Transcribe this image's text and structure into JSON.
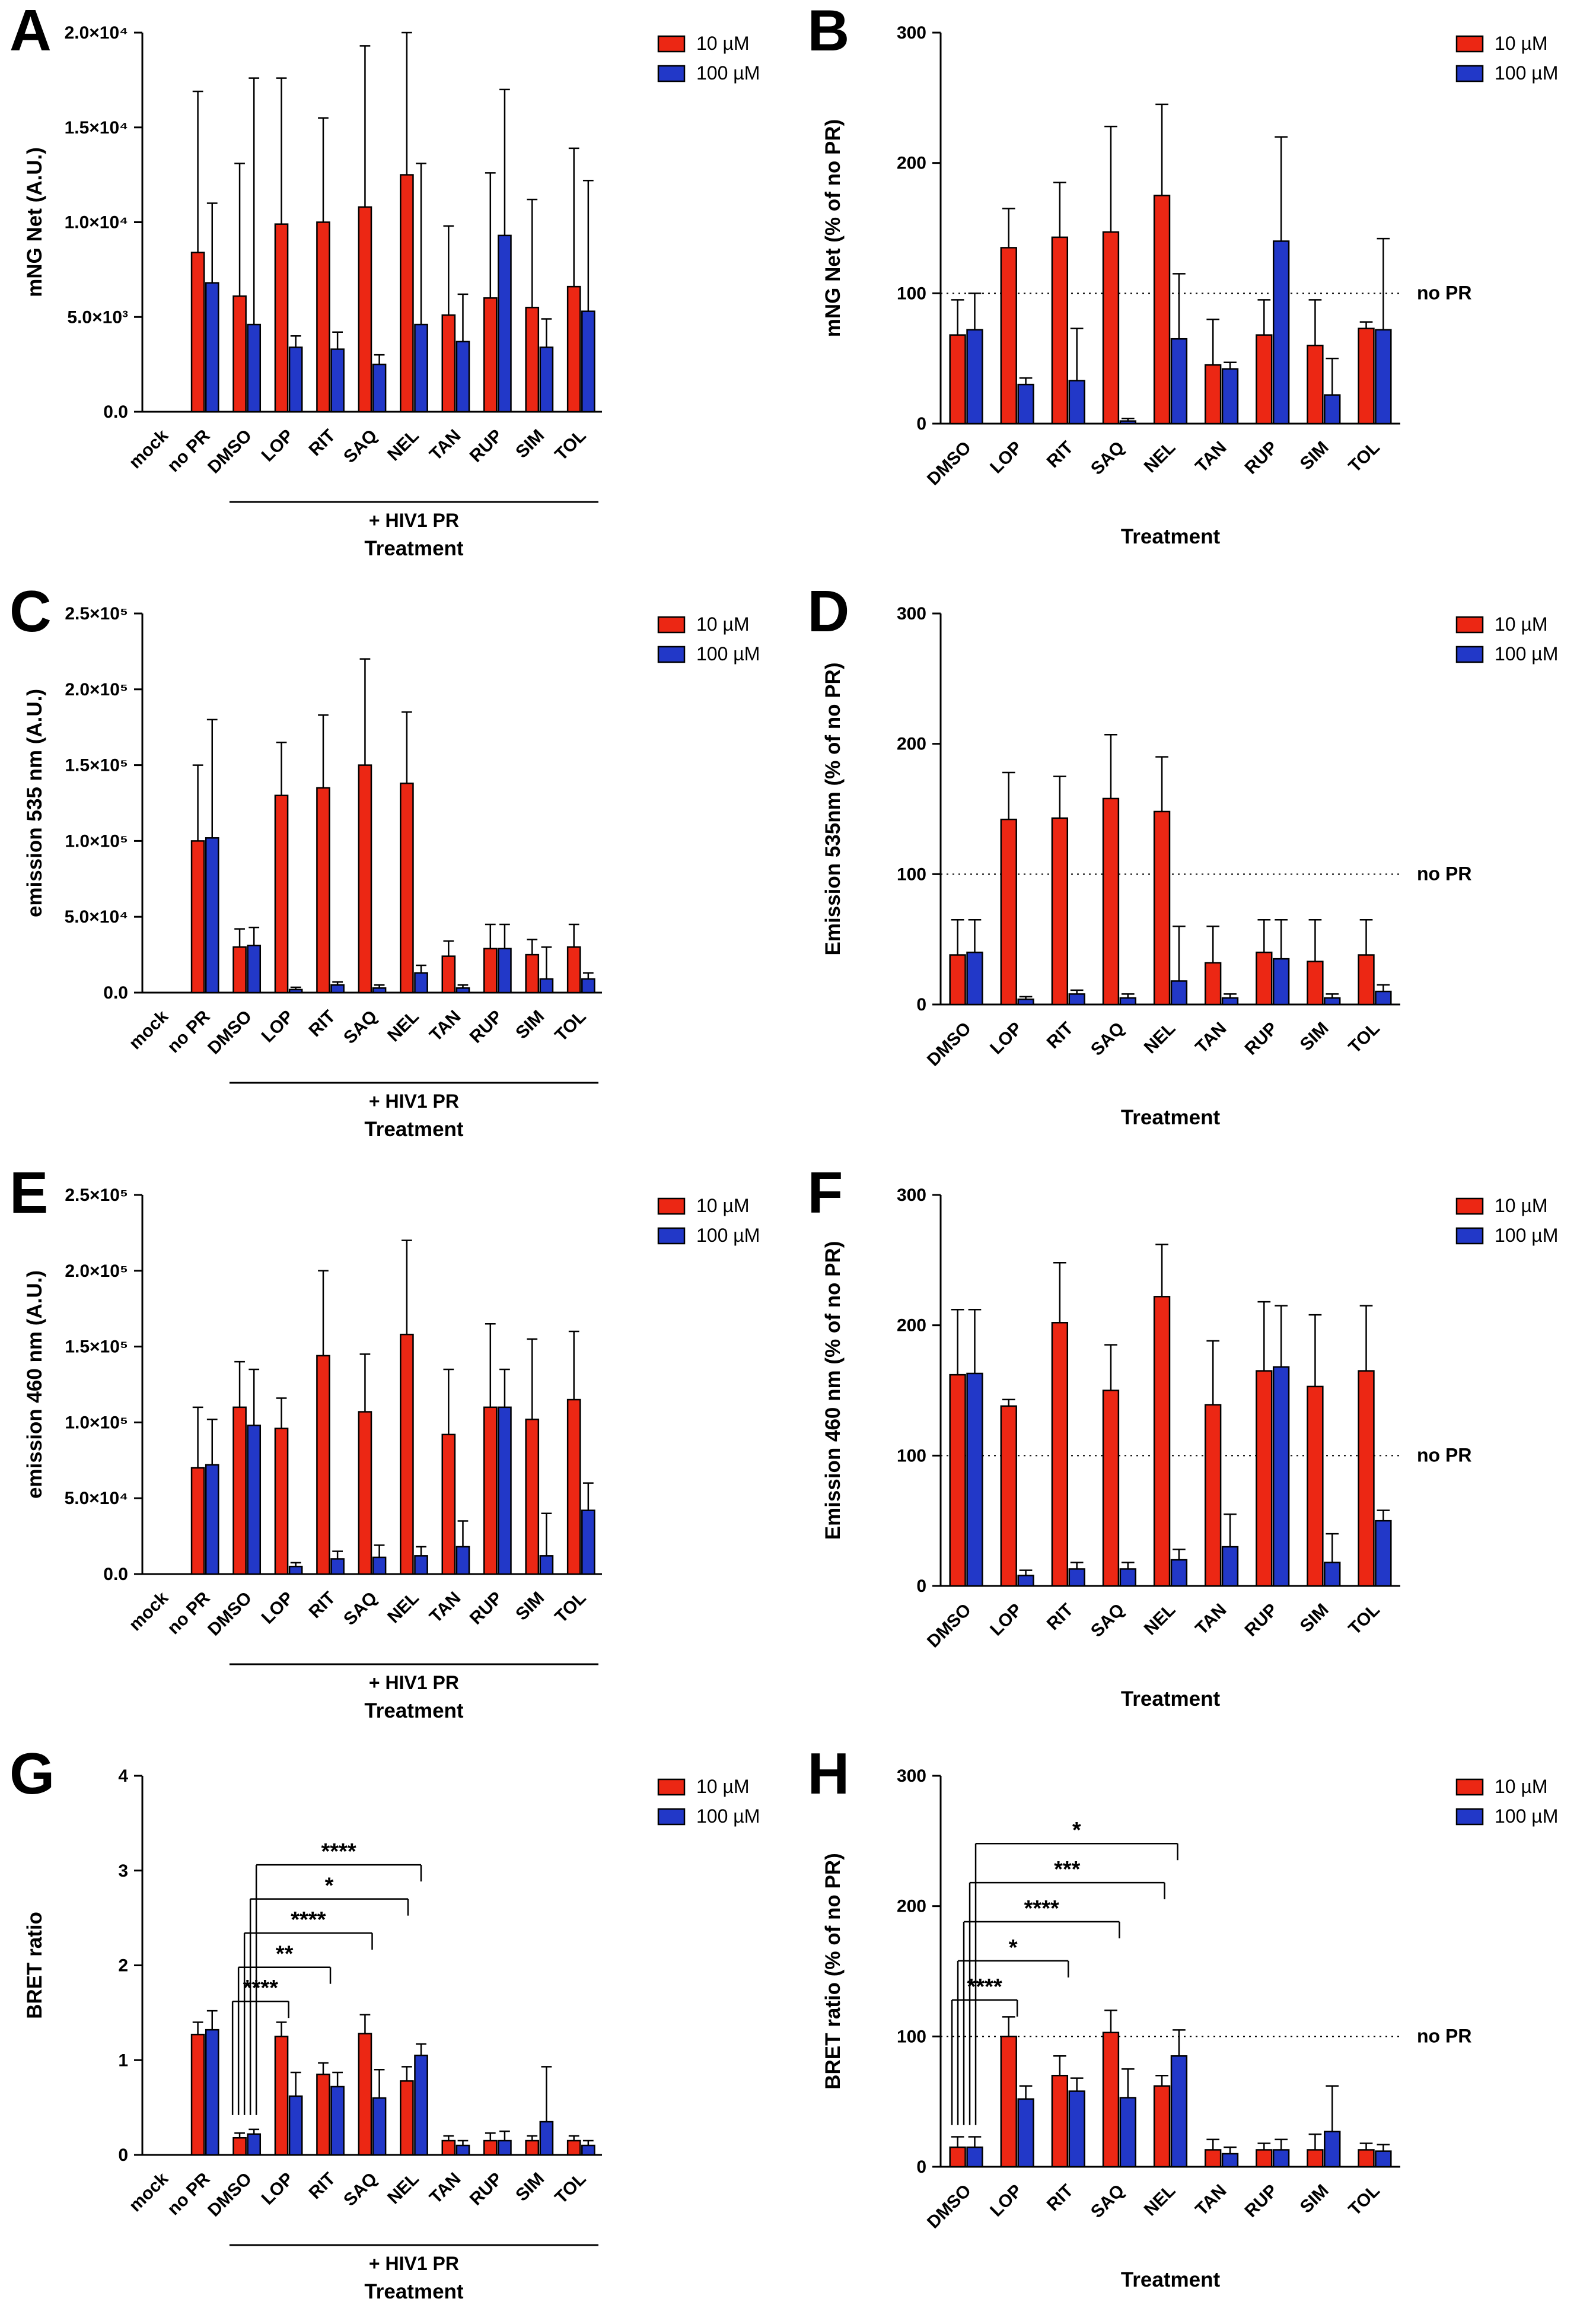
{
  "figure": {
    "panel_labels": [
      "A",
      "B",
      "C",
      "D",
      "E",
      "F",
      "G",
      "H"
    ]
  },
  "chart_data": [
    {
      "type": "bar",
      "panel_label": "A",
      "ylabel": "mNG Net (A.U.)",
      "xlabel": "Treatment",
      "ymax": 20000,
      "yticks": [
        {
          "v": 0,
          "t": "0.0"
        },
        {
          "v": 5000,
          "t": "5.0×10³"
        },
        {
          "v": 10000,
          "t": "1.0×10⁴"
        },
        {
          "v": 15000,
          "t": "1.5×10⁴"
        },
        {
          "v": 20000,
          "t": "2.0×10⁴"
        }
      ],
      "categories": [
        "mock",
        "no PR",
        "DMSO",
        "LOP",
        "RIT",
        "SAQ",
        "NEL",
        "TAN",
        "RUP",
        "SIM",
        "TOL"
      ],
      "series": [
        {
          "name": "10 µM",
          "color": "#EC2714",
          "values": [
            0,
            8400,
            6100,
            9900,
            10000,
            10800,
            12500,
            5100,
            6000,
            5500,
            6600
          ],
          "errors": [
            0,
            8500,
            7000,
            7700,
            5500,
            8500,
            7500,
            4700,
            6600,
            5700,
            7300
          ]
        },
        {
          "name": "100 µM",
          "color": "#2238C8",
          "values": [
            0,
            6800,
            4600,
            3400,
            3300,
            2500,
            4600,
            3700,
            9300,
            3400,
            5300
          ],
          "errors": [
            0,
            4200,
            13000,
            600,
            900,
            500,
            8500,
            2500,
            7700,
            1500,
            6900
          ]
        }
      ],
      "group_bracket": {
        "from": 2,
        "to": 10,
        "label": "+ HIV1 PR"
      }
    },
    {
      "type": "bar",
      "panel_label": "B",
      "ylabel": "mNG Net (% of no PR)",
      "xlabel": "Treatment",
      "ymax": 300,
      "yticks": [
        {
          "v": 0,
          "t": "0"
        },
        {
          "v": 100,
          "t": "100"
        },
        {
          "v": 200,
          "t": "200"
        },
        {
          "v": 300,
          "t": "300"
        }
      ],
      "categories": [
        "DMSO",
        "LOP",
        "RIT",
        "SAQ",
        "NEL",
        "TAN",
        "RUP",
        "SIM",
        "TOL"
      ],
      "series": [
        {
          "name": "10 µM",
          "color": "#EC2714",
          "values": [
            68,
            135,
            143,
            147,
            175,
            45,
            68,
            60,
            73
          ],
          "errors": [
            27,
            30,
            42,
            81,
            70,
            35,
            27,
            35,
            5
          ]
        },
        {
          "name": "100 µM",
          "color": "#2238C8",
          "values": [
            72,
            30,
            33,
            2,
            65,
            42,
            140,
            22,
            72
          ],
          "errors": [
            28,
            5,
            40,
            2,
            50,
            5,
            80,
            28,
            70
          ]
        }
      ],
      "ref_line": {
        "value": 100,
        "label": "no PR"
      }
    },
    {
      "type": "bar",
      "panel_label": "C",
      "ylabel": "emission 535 nm (A.U.)",
      "xlabel": "Treatment",
      "ymax": 250000,
      "yticks": [
        {
          "v": 0,
          "t": "0.0"
        },
        {
          "v": 50000,
          "t": "5.0×10⁴"
        },
        {
          "v": 100000,
          "t": "1.0×10⁵"
        },
        {
          "v": 150000,
          "t": "1.5×10⁵"
        },
        {
          "v": 200000,
          "t": "2.0×10⁵"
        },
        {
          "v": 250000,
          "t": "2.5×10⁵"
        }
      ],
      "categories": [
        "mock",
        "no PR",
        "DMSO",
        "LOP",
        "RIT",
        "SAQ",
        "NEL",
        "TAN",
        "RUP",
        "SIM",
        "TOL"
      ],
      "series": [
        {
          "name": "10 µM",
          "color": "#EC2714",
          "values": [
            0,
            100000,
            30000,
            130000,
            135000,
            150000,
            138000,
            24000,
            29000,
            25000,
            30000
          ],
          "errors": [
            0,
            50000,
            12000,
            35000,
            48000,
            70000,
            47000,
            10000,
            16000,
            10000,
            15000
          ]
        },
        {
          "name": "100 µM",
          "color": "#2238C8",
          "values": [
            0,
            102000,
            31000,
            2000,
            5000,
            3000,
            13000,
            3000,
            29000,
            9000,
            9000
          ],
          "errors": [
            0,
            78000,
            12000,
            1500,
            2000,
            2000,
            5000,
            2000,
            16000,
            21000,
            4000
          ]
        }
      ],
      "group_bracket": {
        "from": 2,
        "to": 10,
        "label": "+ HIV1 PR"
      }
    },
    {
      "type": "bar",
      "panel_label": "D",
      "ylabel": "Emission 535nm (% of no PR)",
      "xlabel": "Treatment",
      "ymax": 300,
      "yticks": [
        {
          "v": 0,
          "t": "0"
        },
        {
          "v": 100,
          "t": "100"
        },
        {
          "v": 200,
          "t": "200"
        },
        {
          "v": 300,
          "t": "300"
        }
      ],
      "categories": [
        "DMSO",
        "LOP",
        "RIT",
        "SAQ",
        "NEL",
        "TAN",
        "RUP",
        "SIM",
        "TOL"
      ],
      "series": [
        {
          "name": "10 µM",
          "color": "#EC2714",
          "values": [
            38,
            142,
            143,
            158,
            148,
            32,
            40,
            33,
            38
          ],
          "errors": [
            27,
            36,
            32,
            49,
            42,
            28,
            25,
            32,
            27
          ]
        },
        {
          "name": "100 µM",
          "color": "#2238C8",
          "values": [
            40,
            4,
            8,
            5,
            18,
            5,
            35,
            5,
            10
          ],
          "errors": [
            25,
            2,
            3,
            3,
            42,
            3,
            30,
            3,
            5
          ]
        }
      ],
      "ref_line": {
        "value": 100,
        "label": "no PR"
      }
    },
    {
      "type": "bar",
      "panel_label": "E",
      "ylabel": "emission 460 nm (A.U.)",
      "xlabel": "Treatment",
      "ymax": 250000,
      "yticks": [
        {
          "v": 0,
          "t": "0.0"
        },
        {
          "v": 50000,
          "t": "5.0×10⁴"
        },
        {
          "v": 100000,
          "t": "1.0×10⁵"
        },
        {
          "v": 150000,
          "t": "1.5×10⁵"
        },
        {
          "v": 200000,
          "t": "2.0×10⁵"
        },
        {
          "v": 250000,
          "t": "2.5×10⁵"
        }
      ],
      "categories": [
        "mock",
        "no PR",
        "DMSO",
        "LOP",
        "RIT",
        "SAQ",
        "NEL",
        "TAN",
        "RUP",
        "SIM",
        "TOL"
      ],
      "series": [
        {
          "name": "10 µM",
          "color": "#EC2714",
          "values": [
            0,
            70000,
            110000,
            96000,
            144000,
            107000,
            158000,
            92000,
            110000,
            102000,
            115000
          ],
          "errors": [
            0,
            40000,
            30000,
            20000,
            56000,
            38000,
            62000,
            43000,
            55000,
            53000,
            45000
          ]
        },
        {
          "name": "100 µM",
          "color": "#2238C8",
          "values": [
            0,
            72000,
            98000,
            5000,
            10000,
            11000,
            12000,
            18000,
            110000,
            12000,
            42000
          ],
          "errors": [
            0,
            30000,
            37000,
            2500,
            5000,
            8000,
            6000,
            17000,
            25000,
            28000,
            18000
          ]
        }
      ],
      "group_bracket": {
        "from": 2,
        "to": 10,
        "label": "+ HIV1 PR"
      }
    },
    {
      "type": "bar",
      "panel_label": "F",
      "ylabel": "Emission 460 nm (% of no PR)",
      "xlabel": "Treatment",
      "ymax": 300,
      "yticks": [
        {
          "v": 0,
          "t": "0"
        },
        {
          "v": 100,
          "t": "100"
        },
        {
          "v": 200,
          "t": "200"
        },
        {
          "v": 300,
          "t": "300"
        }
      ],
      "categories": [
        "DMSO",
        "LOP",
        "RIT",
        "SAQ",
        "NEL",
        "TAN",
        "RUP",
        "SIM",
        "TOL"
      ],
      "series": [
        {
          "name": "10 µM",
          "color": "#EC2714",
          "values": [
            162,
            138,
            202,
            150,
            222,
            139,
            165,
            153,
            165
          ],
          "errors": [
            50,
            5,
            46,
            35,
            40,
            49,
            53,
            55,
            50
          ]
        },
        {
          "name": "100 µM",
          "color": "#2238C8",
          "values": [
            163,
            8,
            13,
            13,
            20,
            30,
            168,
            18,
            50
          ],
          "errors": [
            49,
            4,
            5,
            5,
            8,
            25,
            47,
            22,
            8
          ]
        }
      ],
      "ref_line": {
        "value": 100,
        "label": "no PR"
      }
    },
    {
      "type": "bar",
      "panel_label": "G",
      "ylabel": "BRET ratio",
      "xlabel": "Treatment",
      "ymax": 4,
      "yticks": [
        {
          "v": 0,
          "t": "0"
        },
        {
          "v": 1,
          "t": "1"
        },
        {
          "v": 2,
          "t": "2"
        },
        {
          "v": 3,
          "t": "3"
        },
        {
          "v": 4,
          "t": "4"
        }
      ],
      "categories": [
        "mock",
        "no PR",
        "DMSO",
        "LOP",
        "RIT",
        "SAQ",
        "NEL",
        "TAN",
        "RUP",
        "SIM",
        "TOL"
      ],
      "series": [
        {
          "name": "10 µM",
          "color": "#EC2714",
          "values": [
            0,
            1.27,
            0.18,
            1.25,
            0.85,
            1.28,
            0.78,
            0.15,
            0.15,
            0.15,
            0.15
          ],
          "errors": [
            0,
            0.13,
            0.05,
            0.15,
            0.12,
            0.2,
            0.15,
            0.05,
            0.08,
            0.05,
            0.05
          ]
        },
        {
          "name": "100 µM",
          "color": "#2238C8",
          "values": [
            0,
            1.32,
            0.22,
            0.62,
            0.72,
            0.6,
            1.05,
            0.1,
            0.15,
            0.35,
            0.1
          ],
          "errors": [
            0,
            0.2,
            0.05,
            0.25,
            0.15,
            0.3,
            0.12,
            0.05,
            0.1,
            0.58,
            0.05
          ]
        }
      ],
      "group_bracket": {
        "from": 2,
        "to": 10,
        "label": "+ HIV1 PR"
      },
      "sig_drop": 0.42,
      "significance": [
        {
          "from": "DMSO",
          "to": "LOP",
          "label": "****",
          "y": 1.62
        },
        {
          "from": "DMSO",
          "to": "RIT",
          "label": "**",
          "y": 1.98
        },
        {
          "from": "DMSO",
          "to": "SAQ",
          "label": "****",
          "y": 2.34
        },
        {
          "from": "DMSO",
          "to": "NEL",
          "label": "*",
          "y": 2.7,
          "dx2": -10
        },
        {
          "from": "DMSO",
          "to": "NEL",
          "label": "****",
          "y": 3.06,
          "dx2": 12
        }
      ]
    },
    {
      "type": "bar",
      "panel_label": "H",
      "ylabel": "BRET ratio (% of no PR)",
      "xlabel": "Treatment",
      "ymax": 300,
      "yticks": [
        {
          "v": 0,
          "t": "0"
        },
        {
          "v": 100,
          "t": "100"
        },
        {
          "v": 200,
          "t": "200"
        },
        {
          "v": 300,
          "t": "300"
        }
      ],
      "categories": [
        "DMSO",
        "LOP",
        "RIT",
        "SAQ",
        "NEL",
        "TAN",
        "RUP",
        "SIM",
        "TOL"
      ],
      "series": [
        {
          "name": "10 µM",
          "color": "#EC2714",
          "values": [
            15,
            100,
            70,
            103,
            62,
            13,
            13,
            13,
            13
          ],
          "errors": [
            8,
            15,
            15,
            17,
            8,
            8,
            5,
            12,
            5
          ]
        },
        {
          "name": "100 µM",
          "color": "#2238C8",
          "values": [
            15,
            52,
            58,
            53,
            85,
            10,
            13,
            27,
            12
          ],
          "errors": [
            8,
            10,
            10,
            22,
            20,
            5,
            8,
            35,
            5
          ]
        }
      ],
      "ref_line": {
        "value": 100,
        "label": "no PR"
      },
      "sig_drop": 32,
      "significance": [
        {
          "from": "DMSO",
          "to": "LOP",
          "label": "****",
          "y": 128
        },
        {
          "from": "DMSO",
          "to": "RIT",
          "label": "*",
          "y": 158
        },
        {
          "from": "DMSO",
          "to": "SAQ",
          "label": "****",
          "y": 188
        },
        {
          "from": "DMSO",
          "to": "NEL",
          "label": "***",
          "y": 218,
          "dx2": -10
        },
        {
          "from": "DMSO",
          "to": "NEL",
          "label": "*",
          "y": 248,
          "dx2": 12
        }
      ]
    }
  ]
}
